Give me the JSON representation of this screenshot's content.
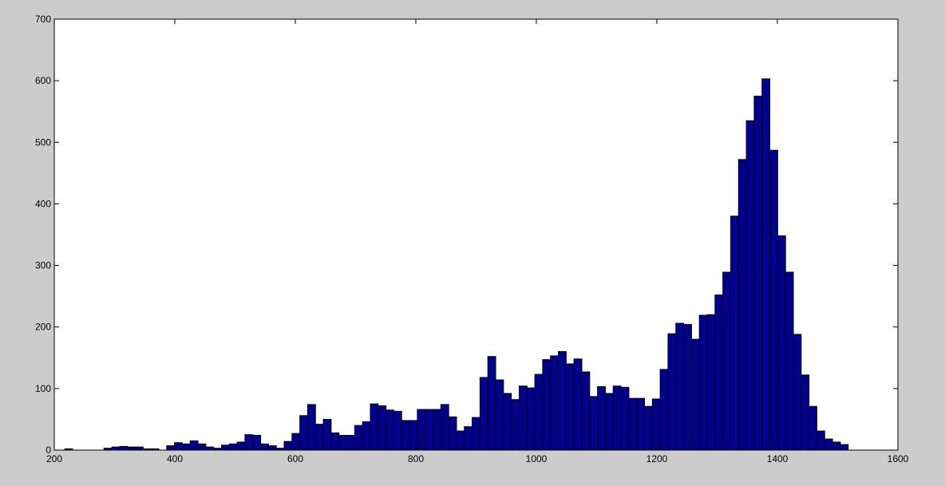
{
  "colors": {
    "figure_background": "#cccccc",
    "axes_background": "#ffffff",
    "bar_fill": "#00008f",
    "bar_edge": "#000000",
    "axis_color": "#000000"
  },
  "chart_data": {
    "type": "bar",
    "subtype": "histogram",
    "title": "",
    "xlabel": "",
    "ylabel": "",
    "xlim": [
      200,
      1600
    ],
    "ylim": [
      0,
      700
    ],
    "grid": false,
    "legend": "none",
    "xticks": [
      "200",
      "400",
      "600",
      "800",
      "1000",
      "1200",
      "1400",
      "1600"
    ],
    "yticks": [
      "0",
      "100",
      "200",
      "300",
      "400",
      "500",
      "600",
      "700"
    ],
    "bin_width": 13,
    "bin_centers": [
      224,
      237,
      250,
      263,
      276,
      289,
      302,
      315,
      328,
      341,
      354,
      367,
      380,
      393,
      406,
      419,
      432,
      445,
      458,
      471,
      484,
      497,
      510,
      523,
      536,
      549,
      562,
      575,
      588,
      601,
      614,
      627,
      640,
      653,
      666,
      679,
      692,
      705,
      718,
      731,
      744,
      757,
      770,
      783,
      796,
      809,
      822,
      835,
      848,
      861,
      874,
      887,
      900,
      913,
      926,
      939,
      952,
      965,
      978,
      991,
      1004,
      1017,
      1030,
      1043,
      1056,
      1069,
      1082,
      1095,
      1108,
      1121,
      1134,
      1147,
      1160,
      1173,
      1186,
      1199,
      1212,
      1225,
      1238,
      1251,
      1264,
      1277,
      1290,
      1303,
      1316,
      1329,
      1342,
      1355,
      1368,
      1381,
      1394,
      1407,
      1420,
      1433,
      1446,
      1459,
      1472,
      1485,
      1498,
      1511
    ],
    "counts": [
      2,
      0,
      0,
      0,
      0,
      3,
      5,
      6,
      5,
      5,
      2,
      2,
      0,
      7,
      12,
      10,
      15,
      10,
      5,
      3,
      8,
      10,
      13,
      25,
      24,
      10,
      7,
      3,
      14,
      27,
      56,
      74,
      42,
      50,
      28,
      24,
      24,
      40,
      46,
      75,
      72,
      65,
      63,
      48,
      48,
      66,
      66,
      66,
      74,
      54,
      31,
      38,
      53,
      118,
      152,
      114,
      92,
      82,
      104,
      101,
      123,
      147,
      153,
      160,
      140,
      148,
      127,
      87,
      103,
      92,
      104,
      102,
      84,
      84,
      71,
      83,
      131,
      189,
      206,
      204,
      180,
      219,
      220,
      252,
      289,
      380,
      472,
      535,
      575,
      603,
      487,
      348,
      289,
      188,
      122,
      71,
      31,
      18,
      13,
      9
    ]
  }
}
